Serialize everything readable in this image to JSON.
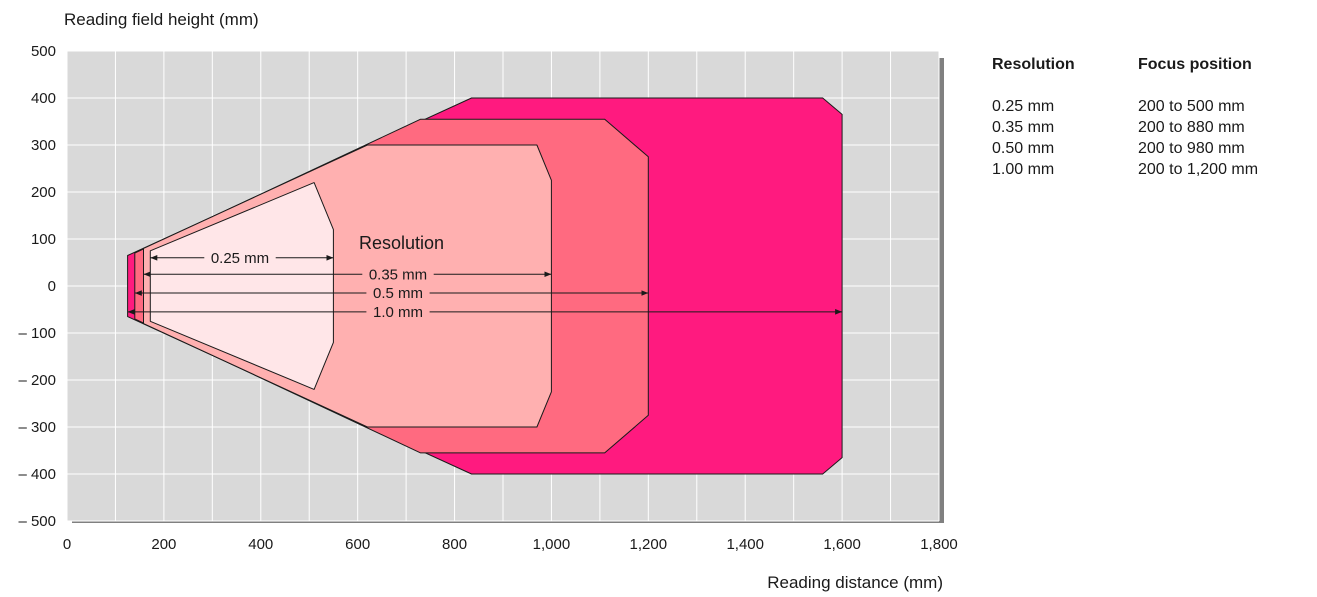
{
  "chart_data": {
    "type": "area",
    "ylabel": "Reading field height (mm)",
    "xlabel": "Reading distance (mm)",
    "xlim": [
      0,
      1800
    ],
    "ylim": [
      -500,
      500
    ],
    "x_ticks": [
      "0",
      "200",
      "400",
      "600",
      "800",
      "1,000",
      "1,200",
      "1,400",
      "1,600",
      "1,800"
    ],
    "y_ticks": [
      "500",
      "400",
      "300",
      "200",
      "100",
      "0",
      "– 100",
      "– 200",
      "– 300",
      "– 400",
      "– 500"
    ],
    "grid": true,
    "fields": [
      {
        "label": "1.0 mm",
        "color": "#ff1a7f",
        "points": [
          [
            125,
            65
          ],
          [
            835,
            400
          ],
          [
            1560,
            400
          ],
          [
            1600,
            365
          ],
          [
            1600,
            -365
          ],
          [
            1560,
            -400
          ],
          [
            835,
            -400
          ],
          [
            125,
            -65
          ]
        ]
      },
      {
        "label": "0.5 mm",
        "color": "#ff6a80",
        "points": [
          [
            140,
            70
          ],
          [
            730,
            355
          ],
          [
            1110,
            355
          ],
          [
            1200,
            275
          ],
          [
            1200,
            -275
          ],
          [
            1110,
            -355
          ],
          [
            730,
            -355
          ],
          [
            140,
            -70
          ]
        ]
      },
      {
        "label": "0.35 mm",
        "color": "#ffb0b0",
        "points": [
          [
            158,
            80
          ],
          [
            620,
            300
          ],
          [
            970,
            300
          ],
          [
            1000,
            225
          ],
          [
            1000,
            -225
          ],
          [
            970,
            -300
          ],
          [
            620,
            -300
          ],
          [
            158,
            -80
          ]
        ]
      },
      {
        "label": "0.25 mm",
        "color": "#ffe6e8",
        "points": [
          [
            172,
            75
          ],
          [
            510,
            220
          ],
          [
            550,
            120
          ],
          [
            550,
            -120
          ],
          [
            510,
            -220
          ],
          [
            172,
            -75
          ]
        ]
      }
    ],
    "annotation_title": "Resolution",
    "arrows": [
      {
        "label": "0.25 mm",
        "x_start": 172,
        "x_end": 550,
        "y": 60
      },
      {
        "label": "0.35 mm",
        "x_start": 158,
        "x_end": 1000,
        "y": 25
      },
      {
        "label": "0.5 mm",
        "x_start": 140,
        "x_end": 1200,
        "y": -15
      },
      {
        "label": "1.0 mm",
        "x_start": 125,
        "x_end": 1600,
        "y": -55
      }
    ]
  },
  "table": {
    "headers": [
      "Resolution",
      "Focus position"
    ],
    "rows": [
      [
        "0.25 mm",
        "200 to 500 mm"
      ],
      [
        "0.35 mm",
        "200 to 880 mm"
      ],
      [
        "0.50 mm",
        "200 to 980 mm"
      ],
      [
        "1.00 mm",
        "200 to 1,200 mm"
      ]
    ]
  }
}
